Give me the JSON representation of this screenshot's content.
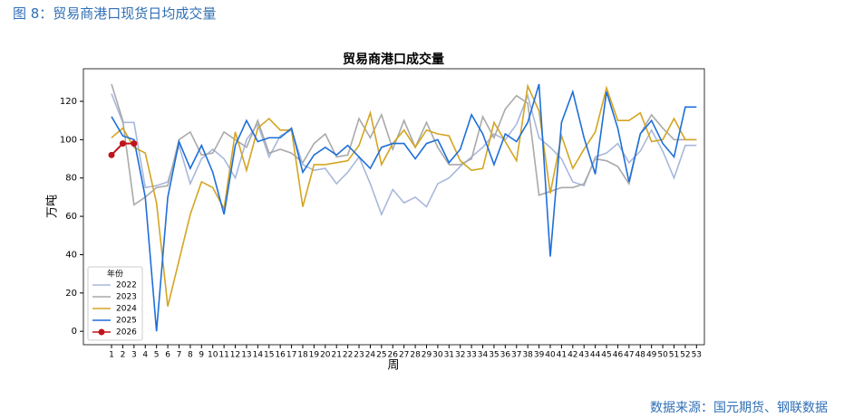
{
  "header": {
    "title": "图 8：贸易商港口现货日均成交量"
  },
  "footer": {
    "source": "数据来源：国元期货、钢联数据"
  },
  "chart_data": {
    "type": "line",
    "title": "贸易商港口成交量",
    "x_label": "周",
    "y_label": "万吨",
    "legend_title": "年份",
    "legend_loc": "lower left",
    "x": [
      1,
      2,
      3,
      4,
      5,
      6,
      7,
      8,
      9,
      10,
      11,
      12,
      13,
      14,
      15,
      16,
      17,
      18,
      19,
      20,
      21,
      22,
      23,
      24,
      25,
      26,
      27,
      28,
      29,
      30,
      31,
      32,
      33,
      34,
      35,
      36,
      37,
      38,
      39,
      40,
      41,
      42,
      43,
      44,
      45,
      46,
      47,
      48,
      49,
      50,
      51,
      52,
      53
    ],
    "xlim": [
      -1.5,
      53.7
    ],
    "xticks": [
      1,
      2,
      3,
      4,
      5,
      6,
      7,
      8,
      9,
      10,
      11,
      12,
      13,
      14,
      15,
      16,
      17,
      18,
      19,
      20,
      21,
      22,
      23,
      24,
      25,
      26,
      27,
      28,
      29,
      30,
      31,
      32,
      33,
      34,
      35,
      36,
      37,
      38,
      39,
      40,
      41,
      42,
      43,
      44,
      45,
      46,
      47,
      48,
      49,
      50,
      51,
      52,
      53
    ],
    "ylim": [
      -7,
      137
    ],
    "yticks": [
      0,
      20,
      40,
      60,
      80,
      100,
      120
    ],
    "series": [
      {
        "name": "2022",
        "color": "#a8b8dc",
        "values": [
          124,
          109,
          109,
          75,
          76,
          78,
          97,
          77,
          90,
          95,
          90,
          80,
          100,
          108,
          91,
          102,
          105,
          87,
          84,
          85,
          77,
          83,
          91,
          77,
          61,
          74,
          67,
          70,
          65,
          77,
          80,
          86,
          91,
          96,
          103,
          100,
          108,
          123,
          101,
          96,
          90,
          78,
          76,
          91,
          93,
          98,
          88,
          94,
          105,
          94,
          80,
          97,
          97
        ]
      },
      {
        "name": "2023",
        "color": "#a9a9a9",
        "values": [
          129,
          110,
          66,
          70,
          75,
          76,
          100,
          104,
          92,
          93,
          104,
          100,
          96,
          110,
          93,
          95,
          93,
          88,
          98,
          103,
          91,
          92,
          111,
          101,
          113,
          95,
          110,
          96,
          109,
          96,
          87,
          87,
          90,
          112,
          101,
          116,
          123,
          119,
          71,
          73,
          75,
          75,
          77,
          90,
          89,
          86,
          77,
          103,
          113,
          106,
          100,
          100,
          100
        ]
      },
      {
        "name": "2024",
        "color": "#d4a520",
        "values": [
          101,
          106,
          96,
          93,
          67,
          13,
          37,
          61,
          78,
          75,
          64,
          104,
          84,
          106,
          111,
          105,
          105,
          65,
          87,
          87,
          88,
          89,
          97,
          114,
          87,
          98,
          105,
          96,
          105,
          103,
          102,
          89,
          84,
          85,
          109,
          99,
          89,
          128,
          115,
          72,
          102,
          85,
          95,
          104,
          127,
          110,
          110,
          114,
          99,
          100,
          111,
          100,
          100
        ]
      },
      {
        "name": "2025",
        "color": "#1f6fd8",
        "values": [
          112,
          102,
          100,
          70,
          0,
          70,
          99,
          85,
          97,
          83,
          61,
          97,
          110,
          99,
          101,
          101,
          106,
          83,
          92,
          96,
          92,
          97,
          91,
          85,
          96,
          98,
          98,
          90,
          98,
          100,
          88,
          95,
          113,
          103,
          87,
          103,
          99,
          109,
          129,
          39,
          109,
          125,
          101,
          82,
          125,
          106,
          78,
          103,
          110,
          98,
          91,
          117,
          117
        ]
      },
      {
        "name": "2026",
        "color": "#c0141c",
        "marker": true,
        "values": [
          92,
          98,
          98,
          null,
          null,
          null,
          null,
          null,
          null,
          null,
          null,
          null,
          null,
          null,
          null,
          null,
          null,
          null,
          null,
          null,
          null,
          null,
          null,
          null,
          null,
          null,
          null,
          null,
          null,
          null,
          null,
          null,
          null,
          null,
          null,
          null,
          null,
          null,
          null,
          null,
          null,
          null,
          null,
          null,
          null,
          null,
          null,
          null,
          null,
          null,
          null,
          null,
          null
        ]
      }
    ]
  }
}
